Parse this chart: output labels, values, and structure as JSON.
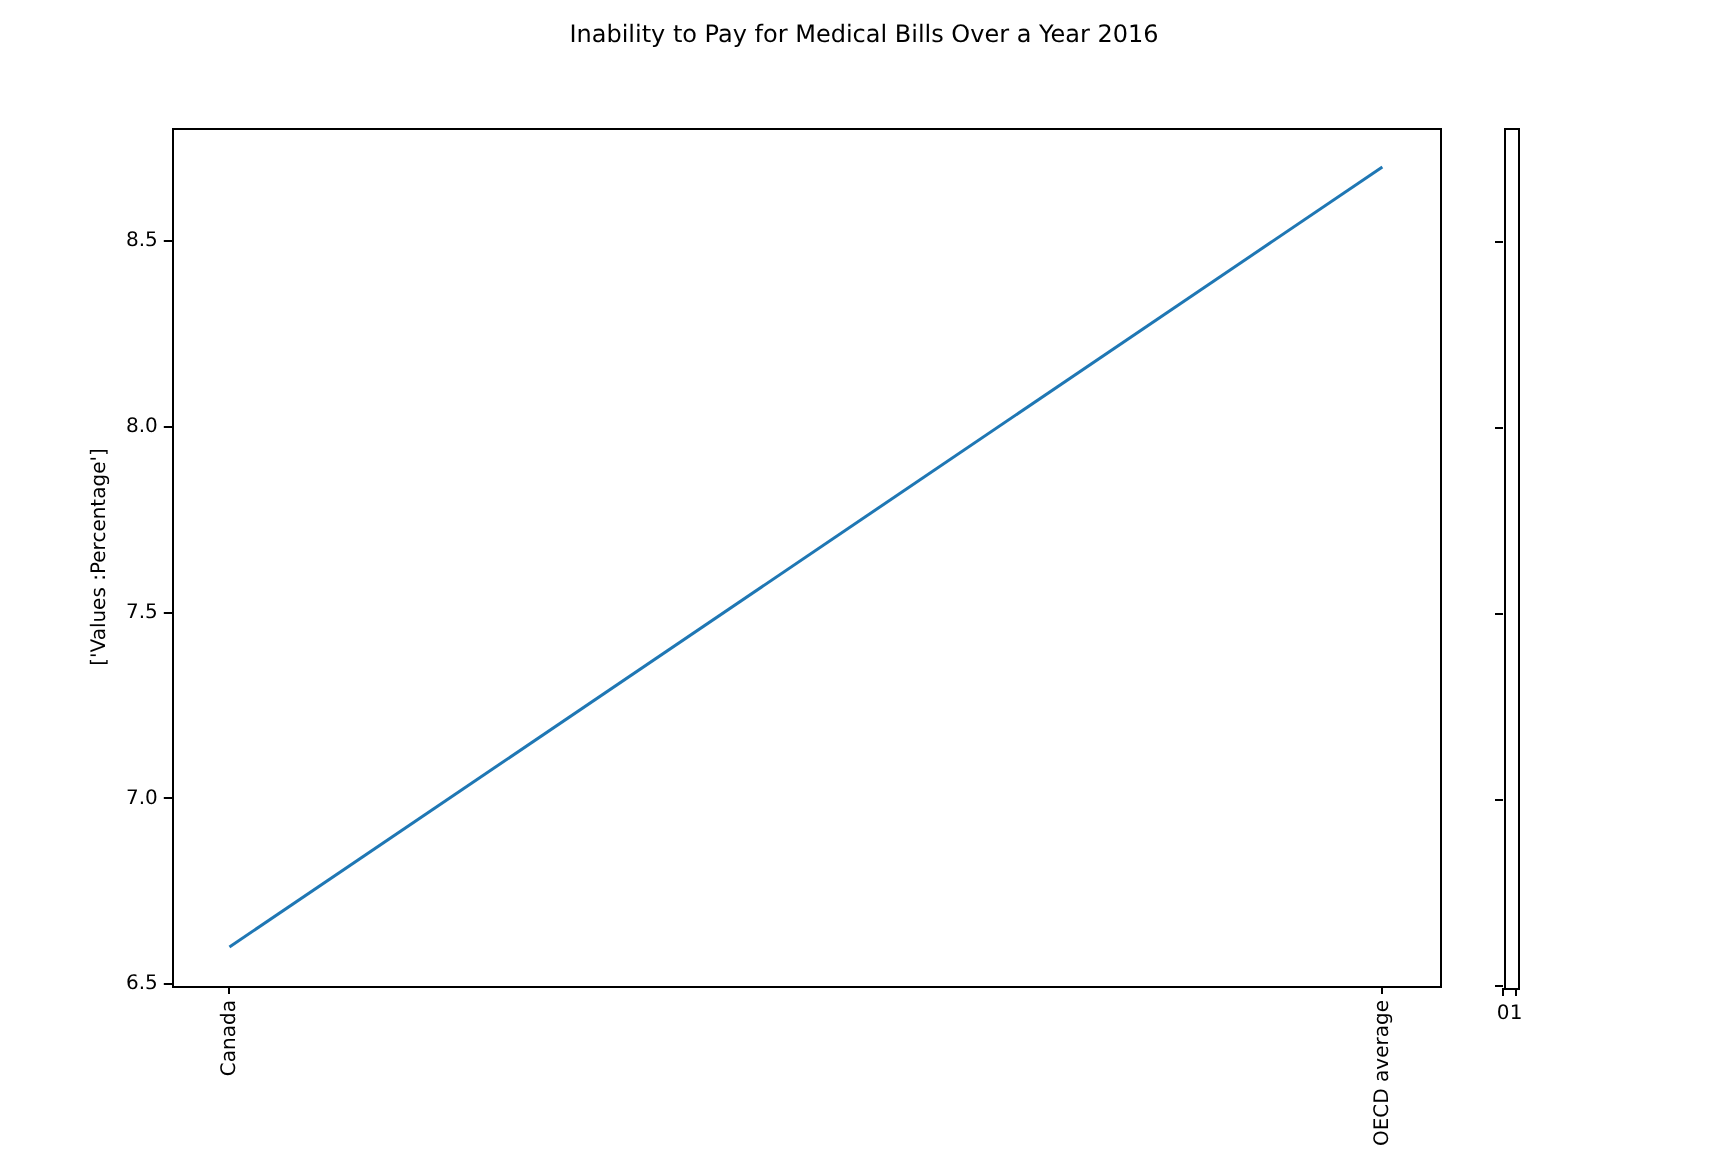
{
  "chart_data": [
    {
      "type": "line",
      "title": "Inability to Pay for Medical Bills Over a Year 2016",
      "ylabel": "['Values :Percentage']",
      "categories": [
        "Canada",
        "OECD average"
      ],
      "series": [
        {
          "color": "#1f77b4",
          "values": [
            6.6,
            8.7
          ]
        }
      ],
      "ylim": [
        6.495,
        8.805
      ],
      "yticks": [
        6.5,
        {
          "value": 7,
          "label": "7.0"
        },
        7.5,
        {
          "value": 8,
          "label": "8.0"
        },
        8.5
      ],
      "grid": false,
      "marker": "none",
      "line_style": "solid"
    },
    {
      "type": "line",
      "xlim": [
        0,
        1
      ],
      "xticks": [
        0,
        1
      ],
      "ylim": [
        6.495,
        8.805
      ],
      "yticks": [
        {
          "value": 6.5,
          "label": null
        },
        {
          "value": 7.0,
          "label": null
        },
        {
          "value": 7.5,
          "label": null
        },
        {
          "value": 8.0,
          "label": null
        },
        {
          "value": 8.5,
          "label": null
        }
      ],
      "tick_labels": "x"
    }
  ]
}
